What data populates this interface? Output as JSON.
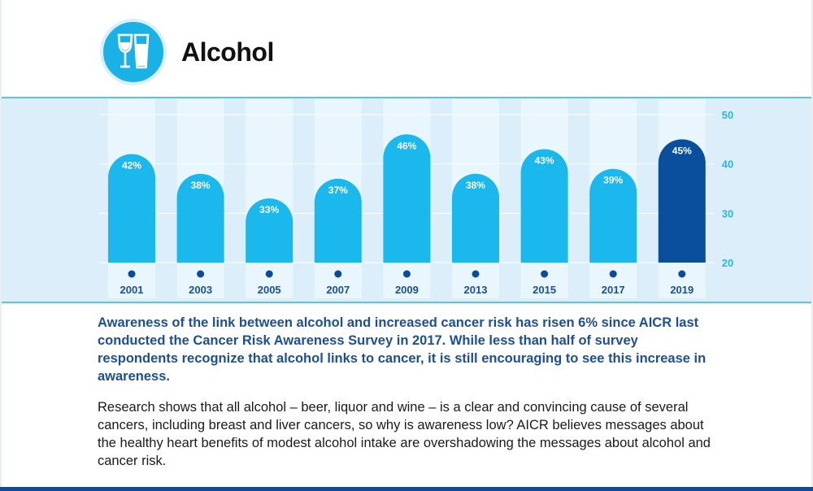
{
  "header": {
    "icon": "wine-and-beer-glasses-icon",
    "title": "Alcohol"
  },
  "colors": {
    "bar_default": "#1ab8ec",
    "bar_highlight": "#0a4e9e",
    "column_bg": "#eaf6fd",
    "band_bg": "#dbeefa",
    "axis_text": "#2fb4e6",
    "year_text": "#1b4f9c",
    "dot": "#0c4a9c"
  },
  "chart_data": {
    "type": "bar",
    "categories": [
      "2001",
      "2003",
      "2005",
      "2007",
      "2009",
      "2013",
      "2015",
      "2017",
      "2019"
    ],
    "values": [
      42,
      38,
      33,
      37,
      46,
      38,
      43,
      39,
      45
    ],
    "value_labels": [
      "42%",
      "38%",
      "33%",
      "37%",
      "46%",
      "38%",
      "43%",
      "39%",
      "45%"
    ],
    "highlight_index": 8,
    "ylim": [
      20,
      50
    ],
    "yticks": [
      20,
      30,
      40,
      50
    ],
    "y_axis_position": "right",
    "title": "",
    "xlabel": "",
    "ylabel": ""
  },
  "text": {
    "lead": "Awareness of the link between alcohol and increased cancer risk has risen 6% since AICR last conducted the Cancer Risk Awareness Survey in 2017. While less than half of survey respondents recognize that alcohol links to cancer, it is still encouraging to see this increase in awareness.",
    "body": "Research shows that all alcohol – beer, liquor and wine – is a clear and convincing cause of several cancers, including breast and liver cancers, so why is awareness low? AICR believes messages about the healthy heart benefits of modest alcohol intake are overshadowing the messages about alcohol and cancer risk."
  }
}
